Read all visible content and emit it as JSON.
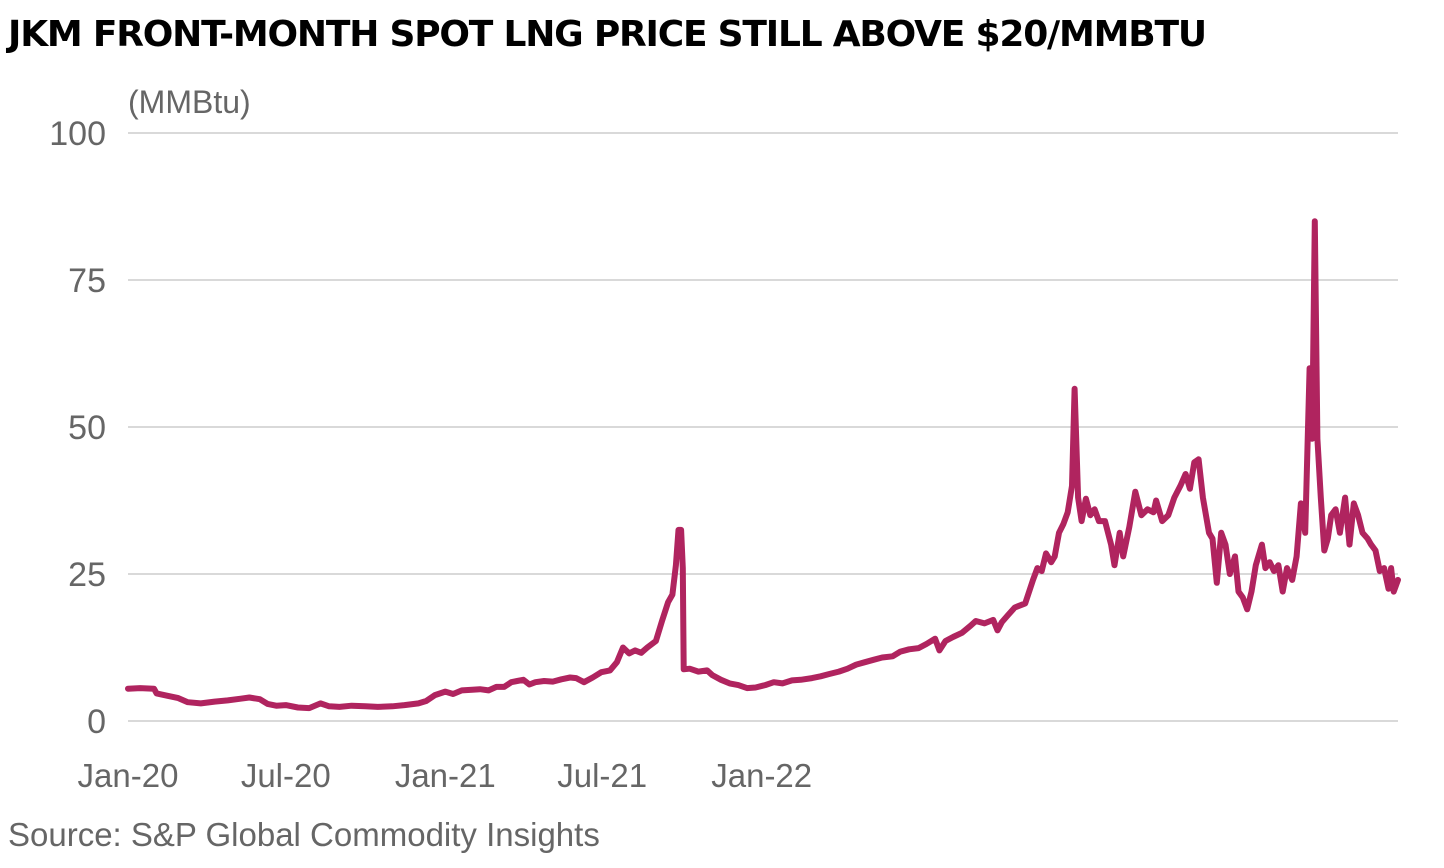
{
  "chart_data": {
    "type": "line",
    "title": "JKM FRONT-MONTH SPOT LNG PRICE STILL ABOVE $20/MMBTU",
    "unit_label": "(MMBtu)",
    "source": "Source: S&P Global Commodity Insights",
    "ylim": [
      0,
      100
    ],
    "yticks": [
      "0",
      "25",
      "50",
      "75",
      "100"
    ],
    "xticks": [
      "Jan-20",
      "Jul-20",
      "Jan-21",
      "Jul-21",
      "Jan-22"
    ],
    "grid": true,
    "line_color": "#B0245F",
    "series": [
      {
        "points": [
          [
            "2020-01-01",
            5.5
          ],
          [
            "2020-01-15",
            5.6
          ],
          [
            "2020-01-31",
            5.5
          ],
          [
            "2020-02-03",
            4.7
          ],
          [
            "2020-02-15",
            4.3
          ],
          [
            "2020-02-28",
            3.9
          ],
          [
            "2020-03-10",
            3.2
          ],
          [
            "2020-03-25",
            3.0
          ],
          [
            "2020-04-10",
            3.3
          ],
          [
            "2020-04-25",
            3.5
          ],
          [
            "2020-05-10",
            3.8
          ],
          [
            "2020-05-20",
            4.0
          ],
          [
            "2020-06-01",
            3.7
          ],
          [
            "2020-06-10",
            2.9
          ],
          [
            "2020-06-20",
            2.6
          ],
          [
            "2020-07-01",
            2.7
          ],
          [
            "2020-07-15",
            2.3
          ],
          [
            "2020-07-28",
            2.2
          ],
          [
            "2020-08-10",
            3.0
          ],
          [
            "2020-08-20",
            2.5
          ],
          [
            "2020-09-01",
            2.4
          ],
          [
            "2020-09-15",
            2.6
          ],
          [
            "2020-10-01",
            2.5
          ],
          [
            "2020-10-15",
            2.4
          ],
          [
            "2020-11-01",
            2.5
          ],
          [
            "2020-11-15",
            2.7
          ],
          [
            "2020-12-01",
            3.0
          ],
          [
            "2020-12-10",
            3.4
          ],
          [
            "2020-12-20",
            4.4
          ],
          [
            "2021-01-01",
            5.0
          ],
          [
            "2021-01-10",
            4.6
          ],
          [
            "2021-01-20",
            5.2
          ],
          [
            "2021-02-01",
            5.3
          ],
          [
            "2021-02-10",
            5.4
          ],
          [
            "2021-02-20",
            5.2
          ],
          [
            "2021-03-01",
            5.8
          ],
          [
            "2021-03-10",
            5.8
          ],
          [
            "2021-03-18",
            6.6
          ],
          [
            "2021-03-25",
            6.8
          ],
          [
            "2021-04-01",
            7.0
          ],
          [
            "2021-04-08",
            6.2
          ],
          [
            "2021-04-15",
            6.6
          ],
          [
            "2021-04-25",
            6.8
          ],
          [
            "2021-05-05",
            6.7
          ],
          [
            "2021-05-15",
            7.1
          ],
          [
            "2021-05-25",
            7.4
          ],
          [
            "2021-06-01",
            7.3
          ],
          [
            "2021-06-10",
            6.6
          ],
          [
            "2021-06-20",
            7.4
          ],
          [
            "2021-06-30",
            8.3
          ],
          [
            "2021-07-10",
            8.6
          ],
          [
            "2021-07-18",
            10.0
          ],
          [
            "2021-07-25",
            12.5
          ],
          [
            "2021-08-01",
            11.5
          ],
          [
            "2021-08-08",
            12.0
          ],
          [
            "2021-08-15",
            11.6
          ],
          [
            "2021-08-22",
            12.5
          ],
          [
            "2021-09-01",
            13.6
          ],
          [
            "2021-09-08",
            17.0
          ],
          [
            "2021-09-15",
            20.2
          ],
          [
            "2021-09-20",
            21.5
          ],
          [
            "2021-09-24",
            26.5
          ],
          [
            "2021-09-27",
            32.5
          ],
          [
            "2021-09-30",
            32.5
          ],
          [
            "2021-10-02",
            26.0
          ],
          [
            "2021-10-03",
            8.8
          ],
          [
            "2021-10-10",
            8.9
          ],
          [
            "2021-10-20",
            8.4
          ],
          [
            "2021-10-30",
            8.6
          ],
          [
            "2021-11-05",
            7.8
          ],
          [
            "2021-11-15",
            7.0
          ],
          [
            "2021-11-25",
            6.4
          ],
          [
            "2021-12-05",
            6.1
          ],
          [
            "2021-12-15",
            5.6
          ],
          [
            "2021-12-25",
            5.7
          ],
          [
            "2022-01-05",
            6.1
          ],
          [
            "2022-01-15",
            6.6
          ],
          [
            "2022-01-25",
            6.4
          ],
          [
            "2022-02-05",
            6.9
          ],
          [
            "2022-02-15",
            7.0
          ],
          [
            "2022-02-28",
            7.3
          ],
          [
            "2022-03-10",
            7.6
          ],
          [
            "2022-03-20",
            8.0
          ],
          [
            "2022-03-31",
            8.4
          ],
          [
            "2022-04-10",
            8.9
          ],
          [
            "2022-04-20",
            9.6
          ],
          [
            "2022-04-30",
            10.0
          ],
          [
            "2022-05-10",
            10.4
          ],
          [
            "2022-05-20",
            10.8
          ],
          [
            "2022-06-01",
            11.0
          ],
          [
            "2022-06-10",
            11.8
          ],
          [
            "2022-06-20",
            12.2
          ],
          [
            "2022-07-01",
            12.4
          ],
          [
            "2022-07-10",
            13.1
          ],
          [
            "2022-07-20",
            14.0
          ],
          [
            "2022-07-25",
            12.0
          ],
          [
            "2022-08-01",
            13.6
          ],
          [
            "2022-08-10",
            14.3
          ],
          [
            "2022-08-20",
            15.0
          ],
          [
            "2022-08-30",
            16.2
          ],
          [
            "2022-09-05",
            17.0
          ],
          [
            "2022-09-15",
            16.6
          ],
          [
            "2022-09-25",
            17.2
          ],
          [
            "2022-09-30",
            15.4
          ],
          [
            "2022-10-05",
            16.8
          ],
          [
            "2022-10-12",
            18.0
          ],
          [
            "2022-10-20",
            19.3
          ],
          [
            "2022-11-01",
            20.0
          ],
          [
            "2022-11-10",
            24.0
          ],
          [
            "2022-11-15",
            26.0
          ],
          [
            "2022-11-20",
            25.5
          ],
          [
            "2022-11-25",
            28.5
          ],
          [
            "2022-12-01",
            27.0
          ],
          [
            "2022-12-05",
            28.0
          ],
          [
            "2022-12-10",
            32.0
          ],
          [
            "2022-12-15",
            33.5
          ],
          [
            "2022-12-20",
            35.5
          ],
          [
            "2022-12-25",
            40.0
          ],
          [
            "2022-12-28",
            56.5
          ],
          [
            "2023-01-01",
            38.0
          ],
          [
            "2023-01-05",
            34.0
          ],
          [
            "2023-01-10",
            37.8
          ],
          [
            "2023-01-15",
            35.0
          ],
          [
            "2023-01-20",
            36.0
          ],
          [
            "2023-01-25",
            34.0
          ],
          [
            "2023-02-01",
            34.0
          ],
          [
            "2023-02-08",
            30.0
          ],
          [
            "2023-02-12",
            26.5
          ],
          [
            "2023-02-18",
            32.0
          ],
          [
            "2023-02-22",
            28.0
          ],
          [
            "2023-03-01",
            33.0
          ],
          [
            "2023-03-08",
            39.0
          ],
          [
            "2023-03-15",
            35.0
          ],
          [
            "2023-03-22",
            36.0
          ],
          [
            "2023-03-29",
            35.5
          ],
          [
            "2023-04-01",
            37.5
          ],
          [
            "2023-04-08",
            34.0
          ],
          [
            "2023-04-15",
            35.0
          ],
          [
            "2023-04-22",
            38.0
          ],
          [
            "2023-04-29",
            40.0
          ],
          [
            "2023-05-05",
            42.0
          ],
          [
            "2023-05-10",
            39.5
          ],
          [
            "2023-05-15",
            44.0
          ],
          [
            "2023-05-20",
            44.5
          ],
          [
            "2023-05-25",
            38.0
          ],
          [
            "2023-06-01",
            32.0
          ],
          [
            "2023-06-05",
            31.0
          ],
          [
            "2023-06-10",
            23.5
          ],
          [
            "2023-06-15",
            32.0
          ],
          [
            "2023-06-20",
            30.0
          ],
          [
            "2023-06-25",
            25.0
          ],
          [
            "2023-07-01",
            28.0
          ],
          [
            "2023-07-05",
            22.0
          ],
          [
            "2023-07-10",
            21.0
          ],
          [
            "2023-07-15",
            19.0
          ],
          [
            "2023-07-20",
            22.0
          ],
          [
            "2023-07-25",
            26.5
          ],
          [
            "2023-08-01",
            30.0
          ],
          [
            "2023-08-05",
            26.0
          ],
          [
            "2023-08-10",
            27.0
          ],
          [
            "2023-08-15",
            25.5
          ],
          [
            "2023-08-20",
            26.5
          ],
          [
            "2023-08-25",
            22.0
          ],
          [
            "2023-08-30",
            26.0
          ],
          [
            "2023-09-05",
            24.0
          ],
          [
            "2023-09-10",
            28.0
          ],
          [
            "2023-09-15",
            37.0
          ],
          [
            "2023-09-20",
            32.0
          ],
          [
            "2023-09-25",
            60.0
          ],
          [
            "2023-09-28",
            48.0
          ],
          [
            "2023-10-01",
            85.0
          ],
          [
            "2023-10-04",
            48.0
          ],
          [
            "2023-10-08",
            38.0
          ],
          [
            "2023-10-12",
            29.0
          ],
          [
            "2023-10-16",
            31.0
          ],
          [
            "2023-10-20",
            35.0
          ],
          [
            "2023-10-25",
            36.0
          ],
          [
            "2023-10-30",
            32.0
          ],
          [
            "2023-11-05",
            38.0
          ],
          [
            "2023-11-10",
            30.0
          ],
          [
            "2023-11-15",
            37.0
          ],
          [
            "2023-11-20",
            35.0
          ],
          [
            "2023-11-25",
            32.0
          ],
          [
            "2023-12-01",
            31.0
          ],
          [
            "2023-12-05",
            30.0
          ],
          [
            "2023-12-10",
            29.0
          ],
          [
            "2023-12-15",
            25.5
          ],
          [
            "2023-12-20",
            26.0
          ],
          [
            "2023-12-25",
            22.5
          ],
          [
            "2023-12-28",
            26.0
          ],
          [
            "2023-12-31",
            22.0
          ],
          [
            "2024-01-05",
            24.0
          ]
        ]
      }
    ]
  }
}
